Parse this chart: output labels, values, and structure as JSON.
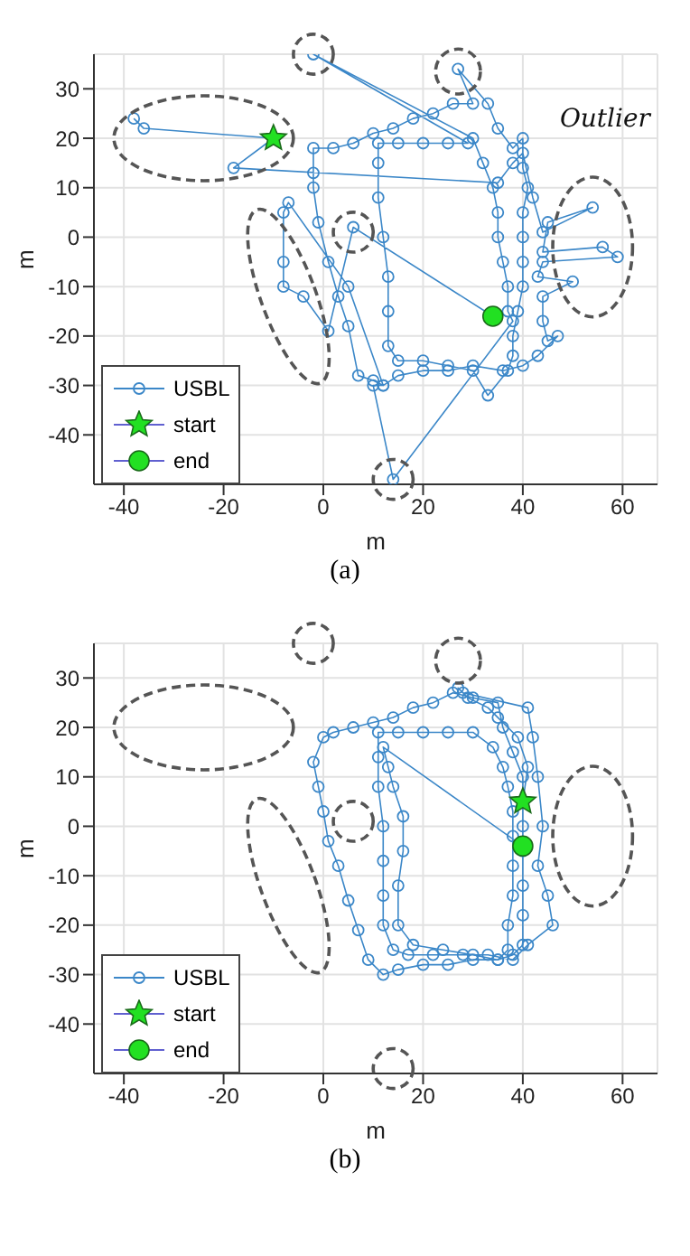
{
  "chart_data": [
    {
      "type": "line",
      "xlabel": "m",
      "ylabel": "m",
      "xlim": [
        -46,
        67
      ],
      "ylim": [
        -50,
        37
      ],
      "xticks": [
        -40,
        -20,
        0,
        20,
        40,
        60
      ],
      "yticks": [
        -40,
        -30,
        -20,
        -10,
        0,
        10,
        20,
        30
      ],
      "grid": true,
      "legend": "bottom left",
      "series": [
        {
          "name": "USBL",
          "marker": "circle",
          "color": "#3b87c8",
          "x": [
            -38,
            -36,
            -10,
            -18,
            35,
            38,
            40,
            42,
            44,
            54,
            45,
            44,
            56,
            59,
            44,
            43,
            50,
            44,
            44,
            45,
            47,
            43,
            40,
            36,
            30,
            25,
            20,
            15,
            12,
            10,
            7,
            5,
            3,
            1,
            -1,
            -2,
            -2,
            -2,
            2,
            6,
            10,
            14,
            18,
            22,
            26,
            30,
            27,
            33,
            35,
            38,
            40,
            40,
            41,
            40,
            40,
            40,
            40,
            39,
            38,
            38,
            37,
            33,
            30,
            25,
            20,
            15,
            13,
            13,
            13,
            12,
            11,
            11,
            11,
            15,
            20,
            25,
            29,
            -2,
            30,
            32,
            34,
            35,
            35,
            36,
            37,
            37,
            38,
            14,
            10,
            12,
            5,
            -7,
            -8,
            -8,
            -8,
            -4,
            1,
            6,
            34
          ],
          "values": [
            24,
            22,
            20,
            14,
            11,
            15,
            17,
            8,
            1,
            6,
            3,
            -3,
            -2,
            -4,
            -5,
            -8,
            -9,
            -12,
            -17,
            -21,
            -20,
            -24,
            -26,
            -27,
            -26,
            -27,
            -27,
            -28,
            -30,
            -29,
            -28,
            -18,
            -12,
            -5,
            3,
            10,
            13,
            18,
            18,
            19,
            21,
            22,
            24,
            25,
            27,
            27,
            34,
            27,
            22,
            18,
            20,
            14,
            10,
            5,
            0,
            -5,
            -10,
            -15,
            -20,
            -24,
            -27,
            -32,
            -27,
            -26,
            -25,
            -25,
            -22,
            -15,
            -8,
            0,
            8,
            15,
            19,
            19,
            19,
            19,
            19,
            37,
            20,
            15,
            10,
            5,
            0,
            -5,
            -10,
            -15,
            -17,
            -49,
            -30,
            -30,
            -10,
            7,
            5,
            -5,
            -10,
            -12,
            -19,
            2,
            -16
          ]
        },
        {
          "name": "start",
          "type": "scatter",
          "marker": "star",
          "color": "#22e022",
          "x": [
            -10
          ],
          "values": [
            20
          ]
        },
        {
          "name": "end",
          "type": "scatter",
          "marker": "circle",
          "color": "#22e022",
          "x": [
            34
          ],
          "values": [
            -16
          ]
        }
      ],
      "annotations": [
        "Outlier",
        "(a)"
      ]
    },
    {
      "type": "line",
      "xlabel": "m",
      "ylabel": "m",
      "xlim": [
        -46,
        67
      ],
      "ylim": [
        -50,
        37
      ],
      "xticks": [
        -40,
        -20,
        0,
        20,
        40,
        60
      ],
      "yticks": [
        -40,
        -30,
        -20,
        -10,
        0,
        10,
        20,
        30
      ],
      "grid": true,
      "legend": "bottom left",
      "series": [
        {
          "name": "USBL",
          "marker": "circle",
          "color": "#3b87c8",
          "x": [
            40,
            40,
            38,
            36,
            35,
            30,
            26,
            22,
            18,
            14,
            10,
            6,
            2,
            0,
            -2,
            -1,
            0,
            1,
            3,
            5,
            7,
            9,
            12,
            15,
            20,
            25,
            30,
            35,
            38,
            40,
            40,
            40,
            40,
            40,
            40,
            41,
            39,
            35,
            33,
            29,
            27,
            28,
            41,
            42,
            43,
            44,
            43,
            45,
            46,
            41,
            38,
            33,
            28,
            22,
            17,
            14,
            12,
            12,
            12,
            12,
            11,
            11,
            11,
            15,
            20,
            25,
            30,
            34,
            36,
            37,
            38,
            38,
            38,
            38,
            37,
            37,
            35,
            30,
            24,
            18,
            15,
            15,
            16,
            16,
            14,
            13,
            12,
            40
          ],
          "values": [
            5,
            10,
            15,
            20,
            25,
            26,
            27,
            25,
            24,
            22,
            21,
            20,
            19,
            18,
            13,
            8,
            3,
            -3,
            -8,
            -15,
            -21,
            -27,
            -30,
            -29,
            -28,
            -28,
            -27,
            -27,
            -26,
            -24,
            -18,
            -12,
            -5,
            0,
            5,
            12,
            18,
            22,
            24,
            26,
            28,
            27,
            24,
            18,
            10,
            0,
            -8,
            -14,
            -20,
            -24,
            -27,
            -26,
            -26,
            -26,
            -26,
            -25,
            -20,
            -14,
            -7,
            0,
            8,
            14,
            19,
            19,
            19,
            19,
            19,
            16,
            12,
            8,
            3,
            -2,
            -8,
            -14,
            -20,
            -25,
            -27,
            -26,
            -25,
            -24,
            -20,
            -12,
            -5,
            2,
            8,
            12,
            16,
            -4
          ]
        },
        {
          "name": "start",
          "type": "scatter",
          "marker": "star",
          "color": "#22e022",
          "x": [
            40
          ],
          "values": [
            5
          ]
        },
        {
          "name": "end",
          "type": "scatter",
          "marker": "circle",
          "color": "#22e022",
          "x": [
            40
          ],
          "values": [
            -4
          ]
        }
      ],
      "annotations": [
        "(b)"
      ]
    }
  ]
}
